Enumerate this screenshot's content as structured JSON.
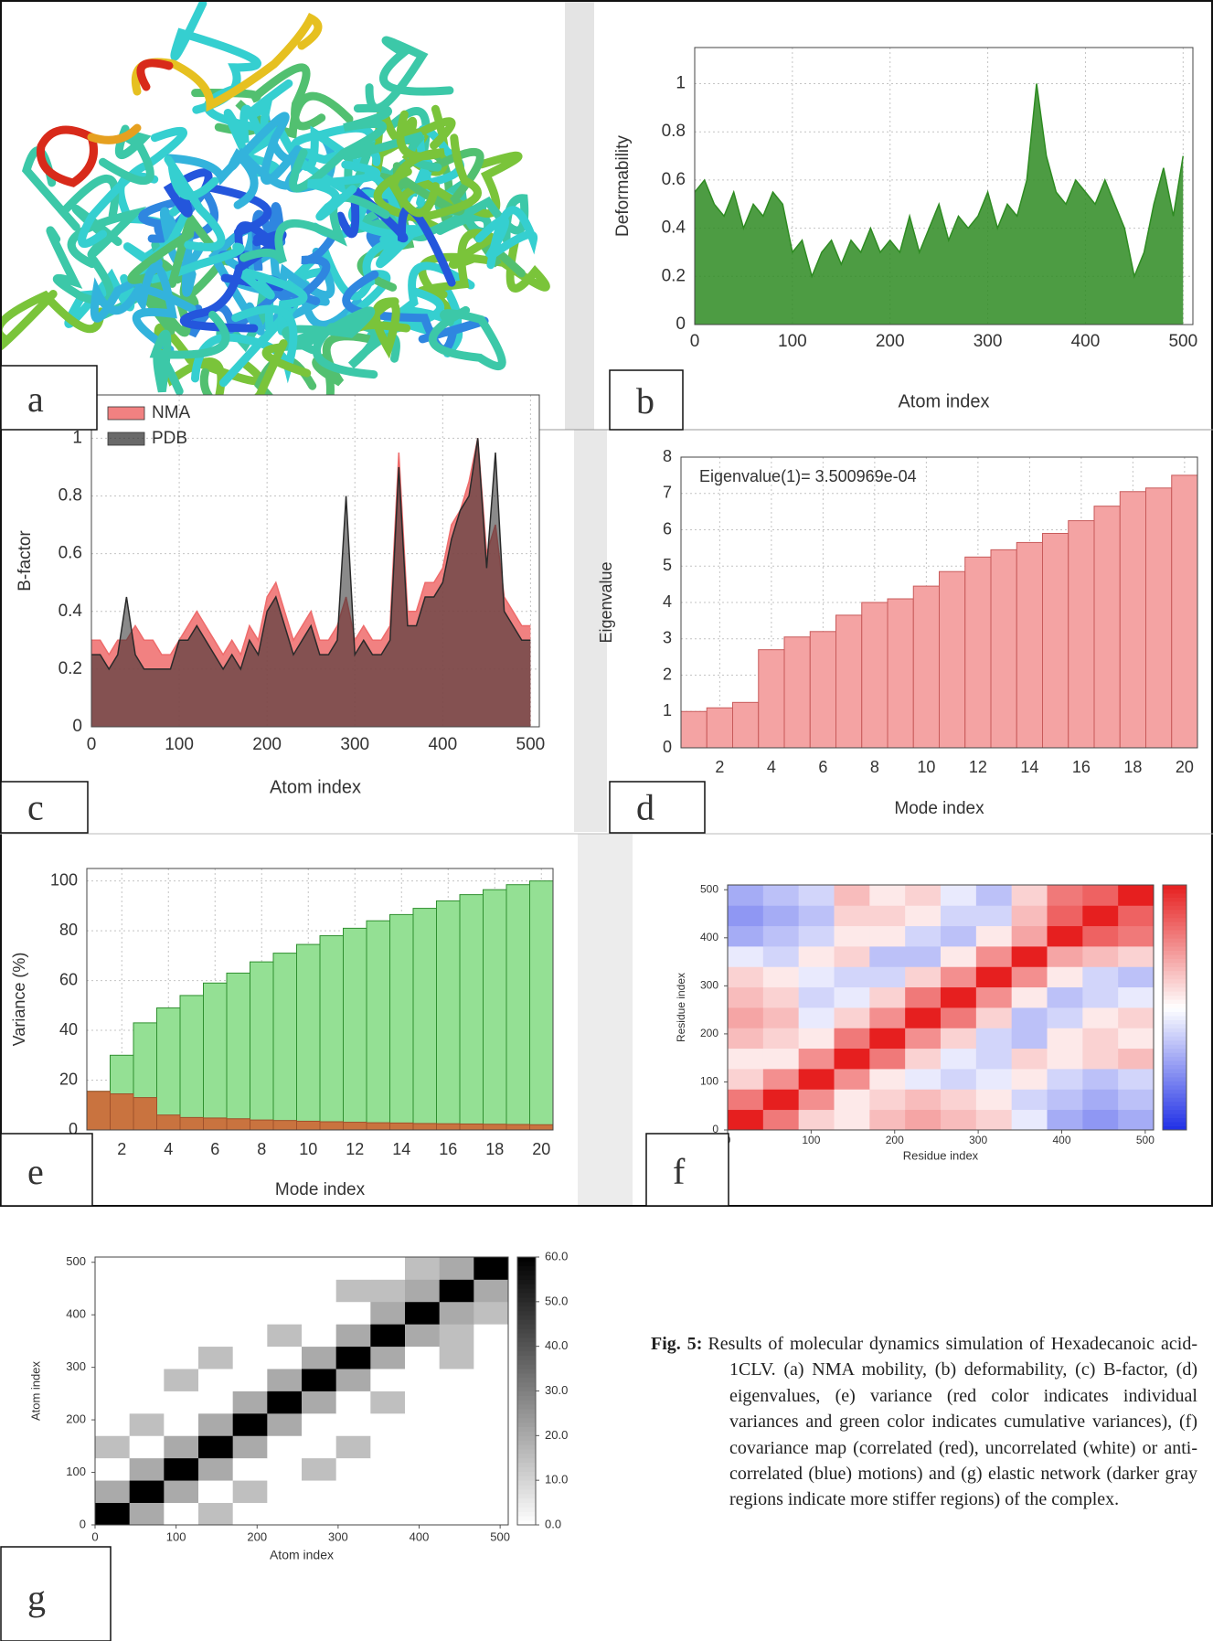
{
  "panel_labels": [
    "a",
    "b",
    "c",
    "d",
    "e",
    "f",
    "g"
  ],
  "caption": {
    "label": "Fig. 5:",
    "text": "Results of molecular dynamics simulation of Hexadecanoic acid-1CLV. (a) NMA mobility, (b) deformability, (c) B-factor, (d) eigenvalues, (e) variance (red color indicates individual variances and green color indicates cumulative variances), (f) covariance map (correlated (red), uncorrelated (white) or anti-correlated (blue) motions) and (g) elastic network (darker gray regions indicate more stiffer regions) of the complex."
  },
  "chart_data": [
    {
      "type": "area",
      "xlabel": "Atom index",
      "ylabel": "Deformability",
      "color": "#2e8b22",
      "x": [
        0,
        10,
        20,
        30,
        40,
        50,
        60,
        70,
        80,
        90,
        100,
        110,
        120,
        130,
        140,
        150,
        160,
        170,
        180,
        190,
        200,
        210,
        220,
        230,
        240,
        250,
        260,
        270,
        280,
        290,
        300,
        310,
        320,
        330,
        340,
        350,
        360,
        370,
        380,
        390,
        400,
        410,
        420,
        430,
        440,
        450,
        460,
        470,
        480,
        490,
        500
      ],
      "values": [
        0.55,
        0.6,
        0.5,
        0.45,
        0.55,
        0.4,
        0.5,
        0.45,
        0.55,
        0.5,
        0.3,
        0.35,
        0.2,
        0.3,
        0.35,
        0.25,
        0.35,
        0.3,
        0.4,
        0.3,
        0.35,
        0.3,
        0.45,
        0.3,
        0.4,
        0.5,
        0.35,
        0.45,
        0.4,
        0.45,
        0.55,
        0.4,
        0.5,
        0.45,
        0.6,
        1.0,
        0.7,
        0.55,
        0.5,
        0.6,
        0.55,
        0.5,
        0.6,
        0.5,
        0.4,
        0.2,
        0.3,
        0.5,
        0.65,
        0.45,
        0.7
      ],
      "xlim": [
        0,
        510
      ],
      "xticks": [
        0,
        100,
        200,
        300,
        400,
        500
      ],
      "ylim": [
        0,
        1.15
      ],
      "yticks": [
        0,
        0.2,
        0.4,
        0.6,
        0.8,
        1
      ],
      "grid": true
    },
    {
      "type": "area",
      "xlabel": "Atom index",
      "ylabel": "B-factor",
      "legend": "upper left",
      "x": [
        0,
        10,
        20,
        30,
        40,
        50,
        60,
        70,
        80,
        90,
        100,
        110,
        120,
        130,
        140,
        150,
        160,
        170,
        180,
        190,
        200,
        210,
        220,
        230,
        240,
        250,
        260,
        270,
        280,
        290,
        300,
        310,
        320,
        330,
        340,
        350,
        360,
        370,
        380,
        390,
        400,
        410,
        420,
        430,
        440,
        450,
        460,
        470,
        480,
        490,
        500
      ],
      "series": [
        {
          "name": "NMA",
          "color": "#ee6b6b",
          "values": [
            0.3,
            0.3,
            0.25,
            0.3,
            0.3,
            0.35,
            0.3,
            0.3,
            0.25,
            0.25,
            0.3,
            0.35,
            0.4,
            0.35,
            0.3,
            0.25,
            0.3,
            0.25,
            0.35,
            0.3,
            0.45,
            0.5,
            0.4,
            0.3,
            0.35,
            0.4,
            0.3,
            0.3,
            0.35,
            0.45,
            0.3,
            0.35,
            0.3,
            0.3,
            0.35,
            0.95,
            0.4,
            0.4,
            0.5,
            0.5,
            0.55,
            0.7,
            0.75,
            0.85,
            1.0,
            0.6,
            0.7,
            0.45,
            0.4,
            0.35,
            0.35
          ]
        },
        {
          "name": "PDB",
          "color": "#2a2a2a",
          "values": [
            0.25,
            0.25,
            0.2,
            0.25,
            0.45,
            0.25,
            0.2,
            0.2,
            0.2,
            0.2,
            0.3,
            0.3,
            0.35,
            0.3,
            0.25,
            0.2,
            0.25,
            0.2,
            0.3,
            0.25,
            0.4,
            0.45,
            0.35,
            0.25,
            0.3,
            0.35,
            0.25,
            0.25,
            0.3,
            0.8,
            0.25,
            0.3,
            0.25,
            0.25,
            0.3,
            0.9,
            0.35,
            0.35,
            0.45,
            0.45,
            0.5,
            0.65,
            0.75,
            0.8,
            1.0,
            0.55,
            0.95,
            0.4,
            0.35,
            0.3,
            0.3
          ]
        }
      ],
      "xlim": [
        0,
        510
      ],
      "xticks": [
        0,
        100,
        200,
        300,
        400,
        500
      ],
      "ylim": [
        0,
        1.15
      ],
      "yticks": [
        0,
        0.2,
        0.4,
        0.6,
        0.8,
        1
      ],
      "grid": true
    },
    {
      "type": "bar",
      "xlabel": "Mode index",
      "ylabel": "Eigenvalue",
      "annotation": "Eigenvalue(1)= 3.500969e-04",
      "color": "#f4a3a3",
      "edgecolor": "#c85a5a",
      "x": [
        1,
        2,
        3,
        4,
        5,
        6,
        7,
        8,
        9,
        10,
        11,
        12,
        13,
        14,
        15,
        16,
        17,
        18,
        19,
        20
      ],
      "values": [
        1.0,
        1.1,
        1.25,
        2.7,
        3.05,
        3.2,
        3.65,
        4.0,
        4.1,
        4.45,
        4.85,
        5.25,
        5.45,
        5.65,
        5.9,
        6.25,
        6.65,
        7.05,
        7.15,
        7.5
      ],
      "xlim": [
        0.5,
        20.5
      ],
      "xticks": [
        2,
        4,
        6,
        8,
        10,
        12,
        14,
        16,
        18,
        20
      ],
      "ylim": [
        0,
        8
      ],
      "yticks": [
        0,
        1,
        2,
        3,
        4,
        5,
        6,
        7,
        8
      ],
      "grid": true
    },
    {
      "type": "bar",
      "xlabel": "Mode index",
      "ylabel": "Variance (%)",
      "x": [
        1,
        2,
        3,
        4,
        5,
        6,
        7,
        8,
        9,
        10,
        11,
        12,
        13,
        14,
        15,
        16,
        17,
        18,
        19,
        20
      ],
      "series": [
        {
          "color": "#94e094",
          "edgecolor": "#2f8f2f",
          "values": [
            15.5,
            30,
            43,
            49,
            54,
            59,
            63,
            67.5,
            71,
            74.5,
            78,
            81,
            84,
            86.5,
            89,
            92,
            94.5,
            96.5,
            98.5,
            100
          ]
        },
        {
          "color": "#c9733f",
          "edgecolor": "#a0502a",
          "values": [
            15.5,
            14.5,
            13,
            6,
            5,
            4.8,
            4.5,
            4,
            3.8,
            3.5,
            3.3,
            3.1,
            2.9,
            2.8,
            2.6,
            2.5,
            2.4,
            2.3,
            2.2,
            2.1
          ]
        }
      ],
      "xlim": [
        0.5,
        20.5
      ],
      "xticks": [
        2,
        4,
        6,
        8,
        10,
        12,
        14,
        16,
        18,
        20
      ],
      "ylim": [
        0,
        105
      ],
      "yticks": [
        0,
        20,
        40,
        60,
        80,
        100
      ],
      "grid": true
    },
    {
      "type": "heatmap",
      "xlabel": "Residue index",
      "ylabel": "Residue index",
      "colormap": [
        "#1f2fe6",
        "#ffffff",
        "#e61f1f"
      ],
      "clim": [
        -1,
        1
      ],
      "xbins": [
        0,
        42.5,
        85,
        127.5,
        170,
        212.5,
        255,
        297.5,
        340,
        382.5,
        425,
        467.5,
        510
      ],
      "ybins": [
        0,
        42.5,
        85,
        127.5,
        170,
        212.5,
        255,
        297.5,
        340,
        382.5,
        425,
        467.5,
        510
      ],
      "z": [
        [
          1,
          0.6,
          0.2,
          0.1,
          0.3,
          0.4,
          0.3,
          0.2,
          -0.1,
          -0.4,
          -0.5,
          -0.4
        ],
        [
          0.6,
          1,
          0.5,
          0.1,
          0.2,
          0.3,
          0.2,
          0.1,
          -0.2,
          -0.3,
          -0.4,
          -0.3
        ],
        [
          0.2,
          0.5,
          1,
          0.5,
          0.1,
          -0.1,
          -0.2,
          -0.1,
          0.1,
          -0.2,
          -0.3,
          -0.2
        ],
        [
          0.1,
          0.1,
          0.5,
          1,
          0.6,
          0.2,
          -0.1,
          -0.2,
          0.2,
          0.1,
          0.2,
          0.3
        ],
        [
          0.3,
          0.2,
          0.1,
          0.6,
          1,
          0.5,
          0.2,
          -0.2,
          -0.3,
          0.1,
          0.2,
          0.1
        ],
        [
          0.4,
          0.3,
          -0.1,
          0.2,
          0.5,
          1,
          0.6,
          0.2,
          -0.3,
          -0.2,
          0.1,
          0.2
        ],
        [
          0.3,
          0.2,
          -0.2,
          -0.1,
          0.2,
          0.6,
          1,
          0.5,
          0.1,
          -0.3,
          -0.2,
          -0.1
        ],
        [
          0.2,
          0.1,
          -0.1,
          -0.2,
          -0.2,
          0.2,
          0.5,
          1,
          0.5,
          0.1,
          -0.2,
          -0.3
        ],
        [
          -0.1,
          -0.2,
          0.1,
          0.2,
          -0.3,
          -0.3,
          0.1,
          0.5,
          1,
          0.4,
          0.3,
          0.2
        ],
        [
          -0.4,
          -0.3,
          -0.2,
          0.1,
          0.1,
          -0.2,
          -0.3,
          0.1,
          0.4,
          1,
          0.7,
          0.6
        ],
        [
          -0.5,
          -0.4,
          -0.3,
          0.2,
          0.2,
          0.1,
          -0.2,
          -0.2,
          0.3,
          0.7,
          1,
          0.7
        ],
        [
          -0.4,
          -0.3,
          -0.2,
          0.3,
          0.1,
          0.2,
          -0.1,
          -0.3,
          0.2,
          0.6,
          0.7,
          1
        ]
      ],
      "xlim": [
        0,
        510
      ],
      "xticks": [
        0,
        100,
        200,
        300,
        400,
        500
      ],
      "ylim": [
        0,
        510
      ],
      "yticks": [
        0,
        100,
        200,
        300,
        400,
        500
      ]
    },
    {
      "type": "heatmap",
      "xlabel": "Atom index",
      "ylabel": "Atom index",
      "colormap": [
        "#ffffff",
        "#000000"
      ],
      "clim": [
        0,
        60
      ],
      "cticks": [
        {
          "value": 0,
          "label": "0.0"
        },
        {
          "value": 10,
          "label": "10.0"
        },
        {
          "value": 20,
          "label": "20.0"
        },
        {
          "value": 30,
          "label": "30.0"
        },
        {
          "value": 40,
          "label": "40.0"
        },
        {
          "value": 50,
          "label": "50.0"
        },
        {
          "value": 60,
          "label": "60.0"
        }
      ],
      "xbins": [
        0,
        42.5,
        85,
        127.5,
        170,
        212.5,
        255,
        297.5,
        340,
        382.5,
        425,
        467.5,
        510
      ],
      "ybins": [
        0,
        42.5,
        85,
        127.5,
        170,
        212.5,
        255,
        297.5,
        340,
        382.5,
        425,
        467.5,
        510
      ],
      "z": [
        [
          60,
          20,
          0,
          15,
          0,
          0,
          0,
          0,
          0,
          0,
          0,
          0
        ],
        [
          20,
          60,
          20,
          0,
          15,
          0,
          0,
          0,
          0,
          0,
          0,
          0
        ],
        [
          0,
          20,
          60,
          20,
          0,
          0,
          15,
          0,
          0,
          0,
          0,
          0
        ],
        [
          15,
          0,
          20,
          60,
          20,
          0,
          0,
          15,
          0,
          0,
          0,
          0
        ],
        [
          0,
          15,
          0,
          20,
          60,
          20,
          0,
          0,
          0,
          0,
          0,
          0
        ],
        [
          0,
          0,
          0,
          0,
          20,
          60,
          20,
          0,
          15,
          0,
          0,
          0
        ],
        [
          0,
          0,
          15,
          0,
          0,
          20,
          60,
          20,
          0,
          0,
          0,
          0
        ],
        [
          0,
          0,
          0,
          15,
          0,
          0,
          20,
          60,
          20,
          0,
          15,
          0
        ],
        [
          0,
          0,
          0,
          0,
          0,
          15,
          0,
          20,
          60,
          20,
          15,
          0
        ],
        [
          0,
          0,
          0,
          0,
          0,
          0,
          0,
          0,
          20,
          60,
          20,
          15
        ],
        [
          0,
          0,
          0,
          0,
          0,
          0,
          0,
          15,
          15,
          20,
          60,
          20
        ],
        [
          0,
          0,
          0,
          0,
          0,
          0,
          0,
          0,
          0,
          15,
          20,
          60
        ]
      ],
      "xlim": [
        0,
        510
      ],
      "xticks": [
        0,
        100,
        200,
        300,
        400,
        500
      ],
      "ylim": [
        0,
        510
      ],
      "yticks": [
        0,
        100,
        200,
        300,
        400,
        500
      ]
    }
  ]
}
